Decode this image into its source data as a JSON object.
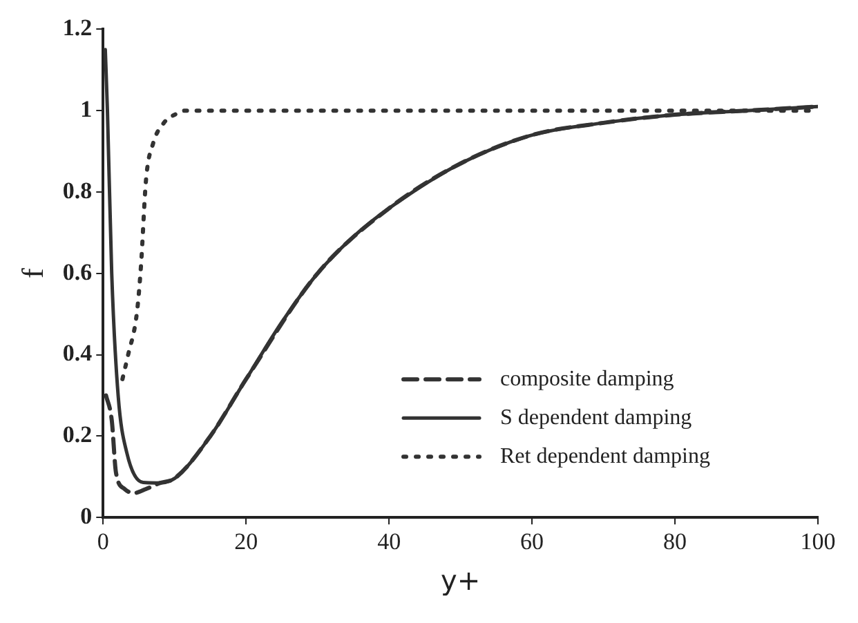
{
  "chart_data": {
    "type": "line",
    "xlabel": "y+",
    "ylabel": "f",
    "xlim": [
      0,
      100
    ],
    "ylim": [
      0,
      1.2
    ],
    "xticks": [
      0,
      20,
      40,
      60,
      80,
      100
    ],
    "yticks": [
      0,
      {
        "value": 0.2,
        "label": "0.2"
      },
      {
        "value": 0.4,
        "label": "0.4"
      },
      {
        "value": 0.6,
        "label": "0.6"
      },
      {
        "value": 0.8,
        "label": "0.8"
      },
      1,
      {
        "value": 1.2,
        "label": "1.2"
      }
    ],
    "grid": false,
    "legend": "bottom right",
    "marker": "none",
    "series": [
      {
        "name": "composite damping",
        "color": "#333333",
        "line_style": "dashed",
        "x": [
          0.4,
          1.2,
          1.8,
          3,
          4.3,
          6,
          8,
          10,
          15,
          20,
          30,
          40,
          50,
          60,
          70,
          80,
          90,
          100
        ],
        "values": [
          0.3,
          0.24,
          0.11,
          0.07,
          0.06,
          0.07,
          0.085,
          0.096,
          0.2,
          0.34,
          0.6,
          0.76,
          0.87,
          0.94,
          0.97,
          0.99,
          1.0,
          1.01
        ]
      },
      {
        "name": "S dependent damping",
        "color": "#333333",
        "line_style": "solid",
        "x": [
          0.3,
          0.6,
          1.2,
          2.1,
          3.3,
          5.6,
          7.5,
          10,
          15,
          20,
          25,
          30,
          35,
          40,
          50,
          60,
          70,
          80,
          90,
          100
        ],
        "values": [
          1.15,
          1.0,
          0.6,
          0.3,
          0.16,
          0.086,
          0.085,
          0.096,
          0.2,
          0.34,
          0.48,
          0.6,
          0.69,
          0.76,
          0.87,
          0.94,
          0.97,
          0.99,
          1.0,
          1.01
        ]
      },
      {
        "name": "Ret dependent damping",
        "color": "#333333",
        "line_style": "dotted",
        "x": [
          2.7,
          3.5,
          4.7,
          5.3,
          6,
          7,
          8.5,
          10,
          11.5,
          20,
          40,
          60,
          80,
          100
        ],
        "values": [
          0.34,
          0.4,
          0.5,
          0.62,
          0.83,
          0.92,
          0.97,
          0.99,
          1.0,
          1.0,
          1.0,
          1.0,
          1.0,
          1.0
        ]
      }
    ]
  }
}
